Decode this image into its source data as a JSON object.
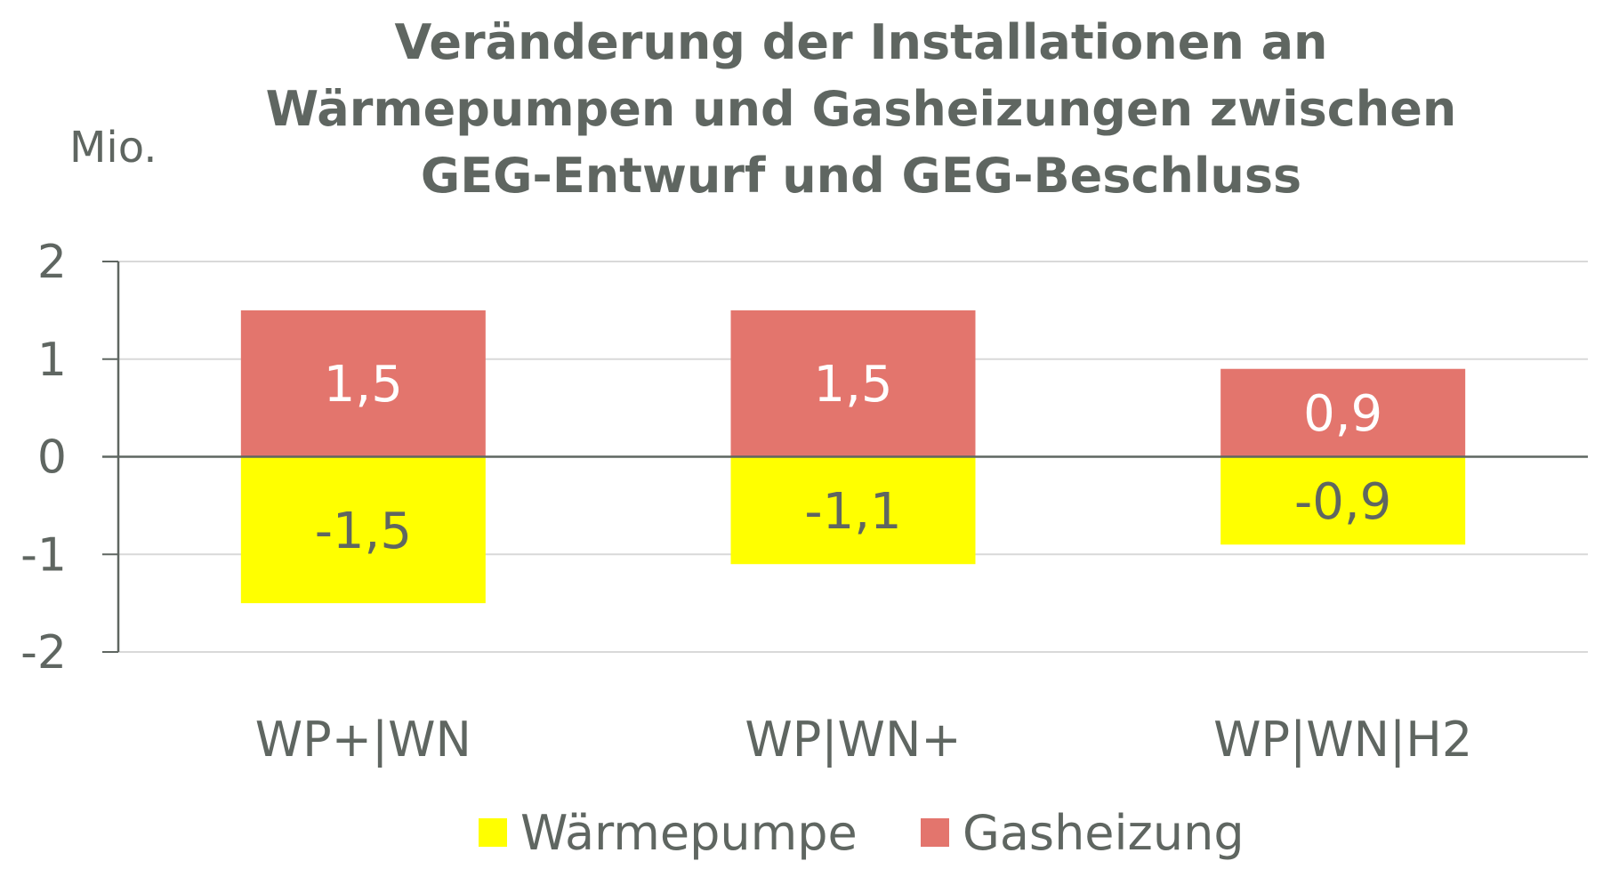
{
  "chart_data": {
    "type": "bar",
    "stacked": true,
    "title_lines": [
      "Veränderung der Installationen an",
      "Wärmepumpen und Gasheizungen zwischen",
      "GEG-Entwurf und GEG-Beschluss"
    ],
    "ylabel": "Mio.",
    "xlabel": "",
    "ylim": [
      -2,
      2
    ],
    "yticks": [
      2,
      1,
      0,
      -1,
      -2
    ],
    "ytick_labels": [
      "2",
      "1",
      "0",
      "-1",
      "-2"
    ],
    "categories": [
      "WP+|WN",
      "WP|WN+",
      "WP|WN|H2"
    ],
    "series": [
      {
        "name": "Wärmepumpe",
        "color": "#ffff00",
        "label_color": "#5f6661",
        "values": [
          -1.5,
          -1.1,
          -0.9
        ],
        "labels": [
          "-1,5",
          "-1,1",
          "-0,9"
        ]
      },
      {
        "name": "Gasheizung",
        "color": "#e3756d",
        "label_color": "#ffffff",
        "values": [
          1.5,
          1.5,
          0.9
        ],
        "labels": [
          "1,5",
          "1,5",
          "0,9"
        ]
      }
    ],
    "grid": true,
    "legend_position": "bottom",
    "colors": {
      "text": "#5f6661",
      "axis": "#5f6661",
      "grid": "#d9d9d9"
    }
  }
}
